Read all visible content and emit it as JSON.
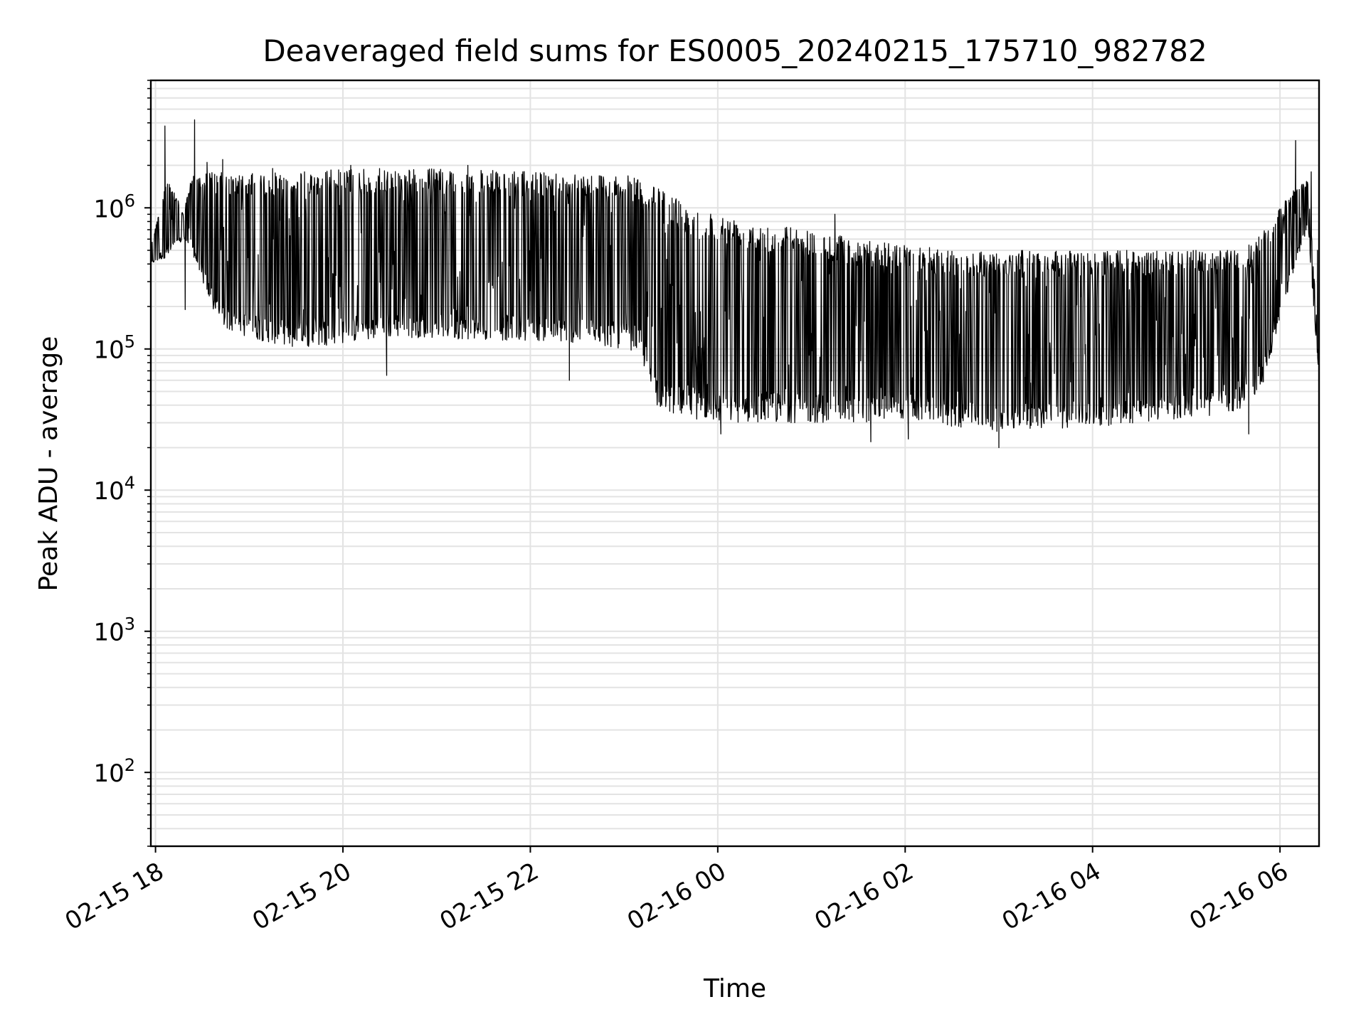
{
  "chart_data": {
    "type": "line",
    "title": "Deaveraged field sums for ES0005_20240215_175710_982782",
    "xlabel": "Time",
    "ylabel": "Peak ADU - average",
    "yscale": "log",
    "ylim": [
      30,
      8000000
    ],
    "xlim": [
      "2024-02-15 17:57",
      "2024-02-16 06:25"
    ],
    "grid": true,
    "grid_color": "#e3e3e3",
    "line_color": "#000000",
    "x_ticks": [
      {
        "value": "2024-02-15 18:00",
        "label": "02-15 18"
      },
      {
        "value": "2024-02-15 20:00",
        "label": "02-15 20"
      },
      {
        "value": "2024-02-15 22:00",
        "label": "02-15 22"
      },
      {
        "value": "2024-02-16 00:00",
        "label": "02-16 00"
      },
      {
        "value": "2024-02-16 02:00",
        "label": "02-16 02"
      },
      {
        "value": "2024-02-16 04:00",
        "label": "02-16 04"
      },
      {
        "value": "2024-02-16 06:00",
        "label": "02-16 06"
      }
    ],
    "y_ticks": [
      {
        "value": 100,
        "base": "10",
        "exp": "2"
      },
      {
        "value": 1000,
        "base": "10",
        "exp": "3"
      },
      {
        "value": 10000,
        "base": "10",
        "exp": "4"
      },
      {
        "value": 100000,
        "base": "10",
        "exp": "5"
      },
      {
        "value": 1000000,
        "base": "10",
        "exp": "6"
      }
    ],
    "envelope": {
      "x": [
        "2024-02-15 17:57",
        "2024-02-15 18:08",
        "2024-02-15 18:18",
        "2024-02-15 18:23",
        "2024-02-15 18:30",
        "2024-02-15 18:40",
        "2024-02-15 18:50",
        "2024-02-15 19:00",
        "2024-02-15 19:30",
        "2024-02-15 20:00",
        "2024-02-15 20:30",
        "2024-02-15 21:00",
        "2024-02-15 21:30",
        "2024-02-15 22:00",
        "2024-02-15 22:30",
        "2024-02-15 23:00",
        "2024-02-15 23:10",
        "2024-02-15 23:20",
        "2024-02-15 23:30",
        "2024-02-15 23:45",
        "2024-02-16 00:00",
        "2024-02-16 00:30",
        "2024-02-16 01:00",
        "2024-02-16 01:30",
        "2024-02-16 02:00",
        "2024-02-16 02:30",
        "2024-02-16 03:00",
        "2024-02-16 03:30",
        "2024-02-16 04:00",
        "2024-02-16 04:30",
        "2024-02-16 05:00",
        "2024-02-16 05:30",
        "2024-02-16 05:40",
        "2024-02-16 05:50",
        "2024-02-16 06:00",
        "2024-02-16 06:10",
        "2024-02-16 06:18",
        "2024-02-16 06:25"
      ],
      "low": [
        400000,
        450000,
        600000,
        500000,
        300000,
        150000,
        130000,
        120000,
        100000,
        110000,
        120000,
        120000,
        115000,
        115000,
        110000,
        100000,
        95000,
        40000,
        35000,
        32000,
        30000,
        30000,
        30000,
        30000,
        32000,
        28000,
        26000,
        27000,
        28000,
        30000,
        32000,
        35000,
        40000,
        60000,
        150000,
        400000,
        700000,
        60000
      ],
      "high": [
        550000,
        1700000,
        900000,
        1700000,
        1800000,
        1800000,
        1700000,
        1750000,
        1800000,
        1900000,
        1900000,
        1900000,
        1850000,
        1800000,
        1800000,
        1700000,
        1650000,
        1400000,
        1250000,
        1050000,
        900000,
        800000,
        700000,
        600000,
        550000,
        500000,
        500000,
        500000,
        500000,
        500000,
        500000,
        500000,
        550000,
        700000,
        1000000,
        1400000,
        1600000,
        90000
      ]
    },
    "spikes": [
      {
        "x": "2024-02-15 18:06",
        "y": 3800000
      },
      {
        "x": "2024-02-15 18:19",
        "y": 190000
      },
      {
        "x": "2024-02-15 18:25",
        "y": 4200000
      },
      {
        "x": "2024-02-15 18:33",
        "y": 2100000
      },
      {
        "x": "2024-02-15 18:43",
        "y": 2200000
      },
      {
        "x": "2024-02-15 19:15",
        "y": 1900000
      },
      {
        "x": "2024-02-15 20:05",
        "y": 2000000
      },
      {
        "x": "2024-02-15 20:28",
        "y": 65000
      },
      {
        "x": "2024-02-15 21:20",
        "y": 2000000
      },
      {
        "x": "2024-02-15 22:25",
        "y": 60000
      },
      {
        "x": "2024-02-15 23:25",
        "y": 1300000
      },
      {
        "x": "2024-02-16 00:02",
        "y": 25000
      },
      {
        "x": "2024-02-16 01:15",
        "y": 900000
      },
      {
        "x": "2024-02-16 01:38",
        "y": 22000
      },
      {
        "x": "2024-02-16 02:02",
        "y": 23000
      },
      {
        "x": "2024-02-16 03:00",
        "y": 20000
      },
      {
        "x": "2024-02-16 05:40",
        "y": 25000
      },
      {
        "x": "2024-02-16 06:10",
        "y": 3000000
      },
      {
        "x": "2024-02-16 06:20",
        "y": 1800000
      },
      {
        "x": "2024-02-16 06:24",
        "y": 500000
      },
      {
        "x": "2024-02-16 06:25",
        "y": 70000
      }
    ]
  }
}
